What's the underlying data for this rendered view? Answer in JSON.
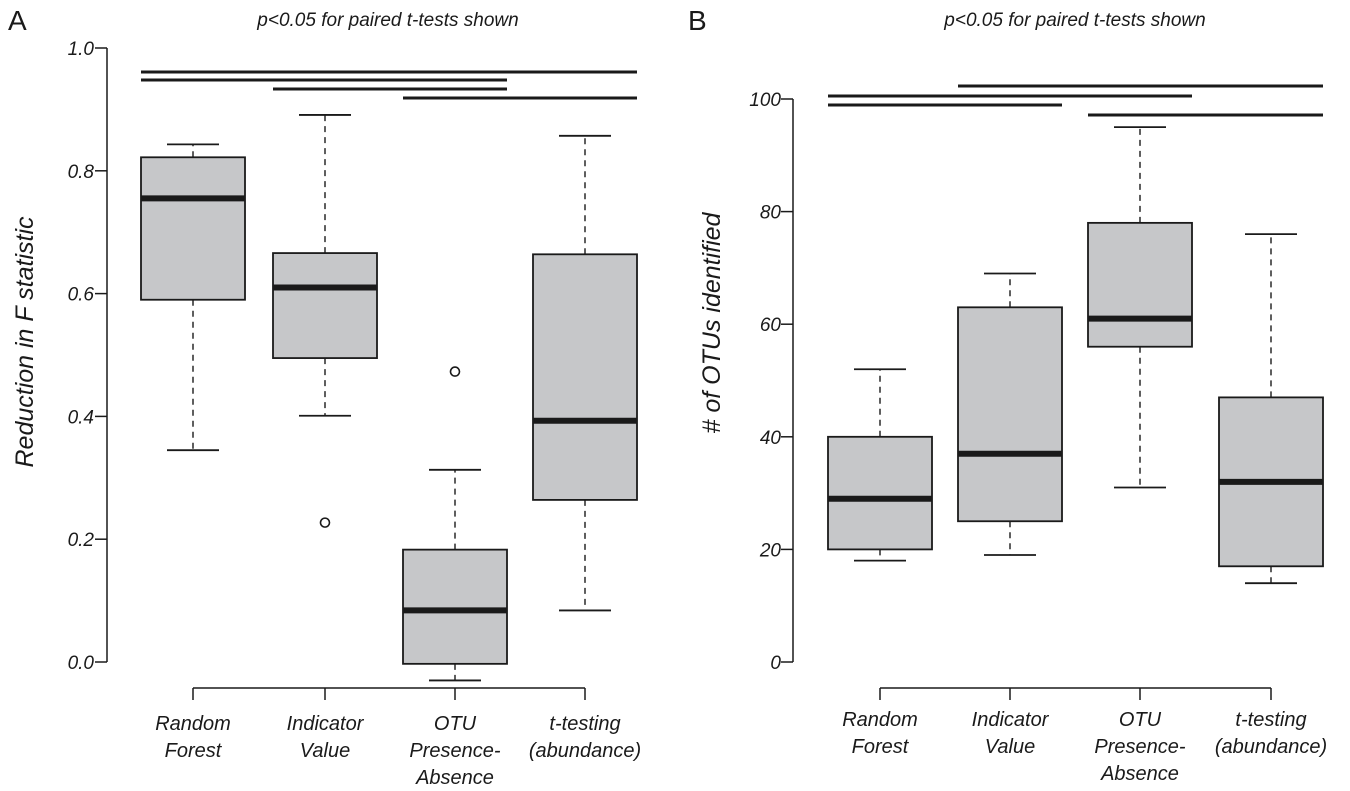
{
  "chart_data": [
    {
      "panel_label": "A",
      "type": "box",
      "subtitle": "p<0.05 for paired t-tests shown",
      "ylabel": "Reduction in F statistic",
      "ylim": [
        0.0,
        1.0
      ],
      "yticks": [
        "0.0",
        "0.2",
        "0.4",
        "0.6",
        "0.8",
        "1.0"
      ],
      "categories": [
        [
          "Random",
          "Forest"
        ],
        [
          "Indicator",
          "Value"
        ],
        [
          "OTU",
          "Presence-",
          "Absence"
        ],
        [
          "t-testing",
          "(abundance)"
        ]
      ],
      "boxes": [
        {
          "whisker_low": 0.345,
          "q1": 0.59,
          "median": 0.755,
          "q3": 0.822,
          "whisker_high": 0.843,
          "outliers": []
        },
        {
          "whisker_low": 0.401,
          "q1": 0.495,
          "median": 0.61,
          "q3": 0.666,
          "whisker_high": 0.891,
          "outliers": [
            0.227
          ]
        },
        {
          "whisker_low": -0.03,
          "q1": -0.003,
          "median": 0.084,
          "q3": 0.183,
          "whisker_high": 0.313,
          "outliers": [
            0.473
          ]
        },
        {
          "whisker_low": 0.084,
          "q1": 0.264,
          "median": 0.393,
          "q3": 0.664,
          "whisker_high": 0.857,
          "outliers": []
        }
      ],
      "significance_pairs": [
        [
          0,
          3
        ],
        [
          0,
          2
        ],
        [
          1,
          2
        ],
        [
          2,
          3
        ]
      ]
    },
    {
      "panel_label": "B",
      "type": "box",
      "subtitle": "p<0.05 for paired t-tests shown",
      "ylabel": "# of OTUs identified",
      "ylim": [
        0,
        100
      ],
      "yticks": [
        "0",
        "20",
        "40",
        "60",
        "80",
        "100"
      ],
      "categories": [
        [
          "Random",
          "Forest"
        ],
        [
          "Indicator",
          "Value"
        ],
        [
          "OTU",
          "Presence-",
          "Absence"
        ],
        [
          "t-testing",
          "(abundance)"
        ]
      ],
      "boxes": [
        {
          "whisker_low": 18,
          "q1": 20,
          "median": 29,
          "q3": 40,
          "whisker_high": 52,
          "outliers": []
        },
        {
          "whisker_low": 19,
          "q1": 25,
          "median": 37,
          "q3": 63,
          "whisker_high": 69,
          "outliers": []
        },
        {
          "whisker_low": 31,
          "q1": 56,
          "median": 61,
          "q3": 78,
          "whisker_high": 95,
          "outliers": []
        },
        {
          "whisker_low": 14,
          "q1": 17,
          "median": 32,
          "q3": 47,
          "whisker_high": 76,
          "outliers": []
        }
      ],
      "significance_pairs": [
        [
          1,
          3
        ],
        [
          0,
          2
        ],
        [
          0,
          1
        ],
        [
          2,
          3
        ]
      ]
    }
  ],
  "colors": {
    "box_fill": "#c6c7c9",
    "stroke": "#1a1a1a"
  }
}
